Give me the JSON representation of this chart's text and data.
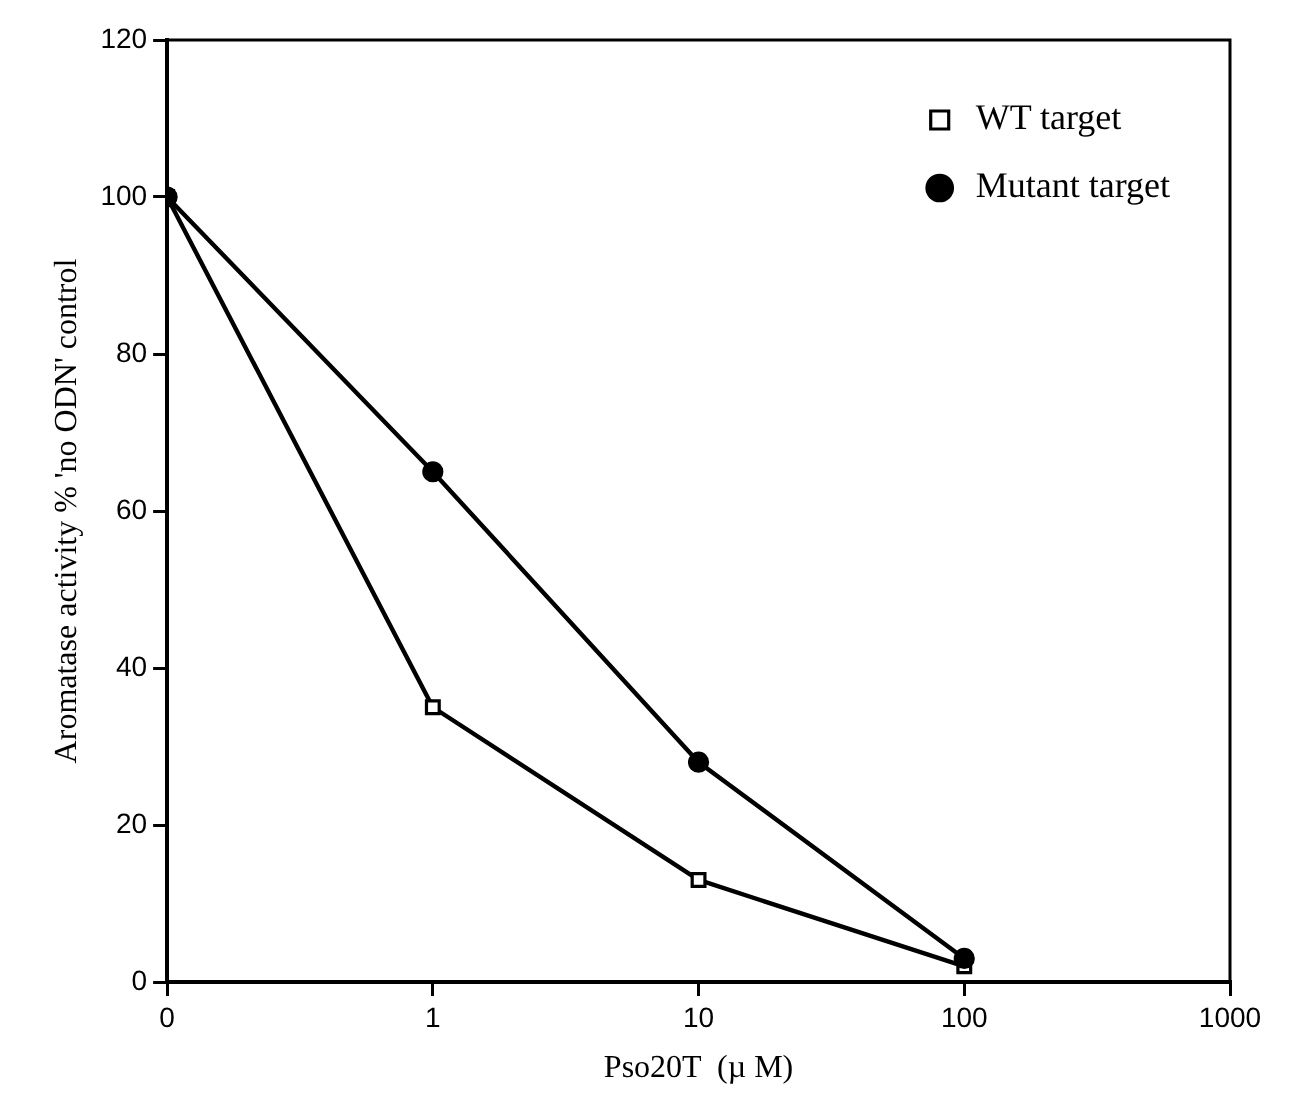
{
  "chart_data": {
    "type": "line",
    "xlabel": "Pso20T  (µ M)",
    "ylabel": "Aromatase activity % 'no ODN' control",
    "x": [
      0.1,
      1,
      10,
      100
    ],
    "series": [
      {
        "name": "WT target",
        "color": "#000000",
        "values": [
          100,
          35,
          13,
          2
        ],
        "marker": "square"
      },
      {
        "name": "Mutant target",
        "color": "#000000",
        "values": [
          100,
          65,
          28,
          3
        ],
        "marker": "circle"
      }
    ],
    "log": "x",
    "xlim": [
      0.1,
      1000
    ],
    "xticks": [
      {
        "value": 0.1,
        "label": "0"
      },
      1,
      10,
      100,
      1000
    ],
    "ylim": [
      0,
      120
    ],
    "yticks": [
      0,
      20,
      40,
      60,
      80,
      100,
      120
    ],
    "grid": false,
    "legend": "top right",
    "line_style": "solid"
  }
}
